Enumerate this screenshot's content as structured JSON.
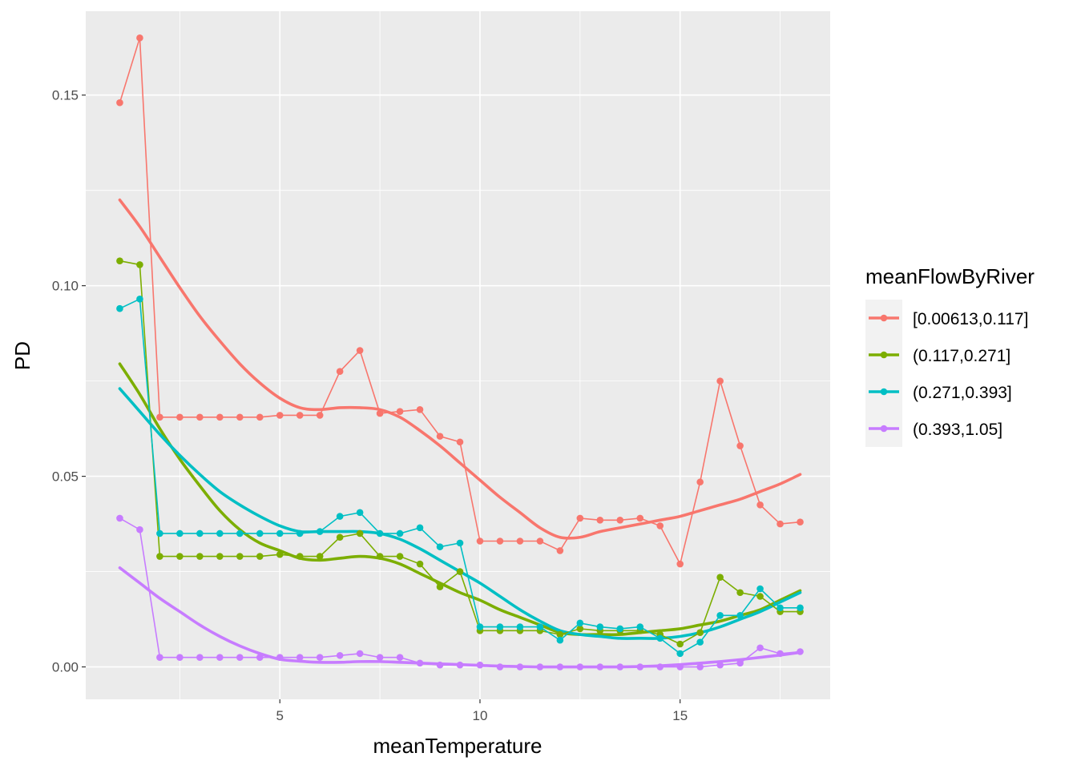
{
  "chart_data": {
    "type": "line",
    "xlabel": "meanTemperature",
    "ylabel": "PD",
    "xlim": [
      0.15,
      18.75
    ],
    "ylim": [
      -0.0085,
      0.172
    ],
    "x_ticks": [
      5,
      10,
      15
    ],
    "x_tick_labels": [
      "5",
      "10",
      "15"
    ],
    "y_ticks": [
      0.0,
      0.05,
      0.1,
      0.15
    ],
    "y_tick_labels": [
      "0.00",
      "0.05",
      "0.10",
      "0.15"
    ],
    "grid": true,
    "legend": {
      "title": "meanFlowByRiver",
      "position": "right"
    },
    "series": [
      {
        "name": "[0.00613,0.117]",
        "color": "#F8766D",
        "x": [
          1,
          1.5,
          2,
          2.5,
          3,
          3.5,
          4,
          4.5,
          5,
          5.5,
          6,
          6.5,
          7,
          7.5,
          8,
          8.5,
          9,
          9.5,
          10,
          10.5,
          11,
          11.5,
          12,
          12.5,
          13,
          13.5,
          14,
          14.5,
          15,
          15.5,
          16,
          16.5,
          17,
          17.5,
          18
        ],
        "y": [
          0.148,
          0.165,
          0.0655,
          0.0655,
          0.0655,
          0.0655,
          0.0655,
          0.0655,
          0.066,
          0.066,
          0.066,
          0.0775,
          0.083,
          0.0665,
          0.067,
          0.0675,
          0.0605,
          0.059,
          0.033,
          0.033,
          0.033,
          0.033,
          0.0305,
          0.039,
          0.0385,
          0.0385,
          0.039,
          0.037,
          0.027,
          0.0485,
          0.075,
          0.058,
          0.0425,
          0.0375,
          0.038
        ],
        "smooth_y": [
          0.1225,
          0.1155,
          0.1075,
          0.0995,
          0.092,
          0.0855,
          0.0795,
          0.0745,
          0.0705,
          0.068,
          0.0675,
          0.068,
          0.068,
          0.0675,
          0.0655,
          0.062,
          0.058,
          0.0535,
          0.049,
          0.0445,
          0.0405,
          0.0365,
          0.034,
          0.034,
          0.0355,
          0.0365,
          0.0375,
          0.0385,
          0.0395,
          0.041,
          0.0425,
          0.044,
          0.046,
          0.048,
          0.0505
        ]
      },
      {
        "name": "(0.117,0.271]",
        "color": "#7CAE00",
        "x": [
          1,
          1.5,
          2,
          2.5,
          3,
          3.5,
          4,
          4.5,
          5,
          5.5,
          6,
          6.5,
          7,
          7.5,
          8,
          8.5,
          9,
          9.5,
          10,
          10.5,
          11,
          11.5,
          12,
          12.5,
          13,
          13.5,
          14,
          14.5,
          15,
          15.5,
          16,
          16.5,
          17,
          17.5,
          18
        ],
        "y": [
          0.1065,
          0.1055,
          0.029,
          0.029,
          0.029,
          0.029,
          0.029,
          0.029,
          0.0295,
          0.029,
          0.029,
          0.034,
          0.035,
          0.029,
          0.029,
          0.027,
          0.021,
          0.025,
          0.0095,
          0.0095,
          0.0095,
          0.0095,
          0.0085,
          0.01,
          0.0095,
          0.0095,
          0.0095,
          0.0085,
          0.006,
          0.009,
          0.0235,
          0.0195,
          0.0185,
          0.0145,
          0.0145
        ],
        "smooth_y": [
          0.0795,
          0.0715,
          0.0625,
          0.0545,
          0.0475,
          0.041,
          0.036,
          0.0325,
          0.0305,
          0.0285,
          0.028,
          0.0285,
          0.029,
          0.0285,
          0.027,
          0.0245,
          0.022,
          0.0195,
          0.0175,
          0.015,
          0.013,
          0.011,
          0.009,
          0.0085,
          0.0085,
          0.0085,
          0.009,
          0.0095,
          0.01,
          0.011,
          0.012,
          0.0135,
          0.015,
          0.0175,
          0.02
        ]
      },
      {
        "name": "(0.271,0.393]",
        "color": "#00BFC4",
        "x": [
          1,
          1.5,
          2,
          2.5,
          3,
          3.5,
          4,
          4.5,
          5,
          5.5,
          6,
          6.5,
          7,
          7.5,
          8,
          8.5,
          9,
          9.5,
          10,
          10.5,
          11,
          11.5,
          12,
          12.5,
          13,
          13.5,
          14,
          14.5,
          15,
          15.5,
          16,
          16.5,
          17,
          17.5,
          18
        ],
        "y": [
          0.094,
          0.0965,
          0.035,
          0.035,
          0.035,
          0.035,
          0.035,
          0.035,
          0.035,
          0.035,
          0.0355,
          0.0395,
          0.0405,
          0.035,
          0.035,
          0.0365,
          0.0315,
          0.0325,
          0.0105,
          0.0105,
          0.0105,
          0.0105,
          0.007,
          0.0115,
          0.0105,
          0.01,
          0.0105,
          0.0075,
          0.0035,
          0.0065,
          0.0135,
          0.0135,
          0.0205,
          0.0155,
          0.0155
        ],
        "smooth_y": [
          0.073,
          0.067,
          0.061,
          0.0555,
          0.0505,
          0.046,
          0.0425,
          0.0395,
          0.037,
          0.0355,
          0.0355,
          0.0355,
          0.0355,
          0.035,
          0.0335,
          0.031,
          0.028,
          0.025,
          0.022,
          0.0185,
          0.015,
          0.012,
          0.0095,
          0.0085,
          0.008,
          0.0075,
          0.0075,
          0.0075,
          0.008,
          0.009,
          0.0105,
          0.0125,
          0.0145,
          0.017,
          0.0195
        ]
      },
      {
        "name": "(0.393,1.05]",
        "color": "#C77CFF",
        "x": [
          1,
          1.5,
          2,
          2.5,
          3,
          3.5,
          4,
          4.5,
          5,
          5.5,
          6,
          6.5,
          7,
          7.5,
          8,
          8.5,
          9,
          9.5,
          10,
          10.5,
          11,
          11.5,
          12,
          12.5,
          13,
          13.5,
          14,
          14.5,
          15,
          15.5,
          16,
          16.5,
          17,
          17.5,
          18
        ],
        "y": [
          0.039,
          0.036,
          0.0025,
          0.0025,
          0.0025,
          0.0025,
          0.0025,
          0.0025,
          0.0025,
          0.0025,
          0.0025,
          0.003,
          0.0035,
          0.0025,
          0.0025,
          0.001,
          0.0005,
          0.0005,
          0.0005,
          0.0,
          0.0,
          0.0,
          0.0,
          0.0,
          0.0,
          0.0,
          0.0,
          0.0,
          0.0,
          0.0,
          0.0005,
          0.001,
          0.005,
          0.0035,
          0.004
        ],
        "smooth_y": [
          0.026,
          0.022,
          0.018,
          0.0145,
          0.011,
          0.008,
          0.0055,
          0.0035,
          0.002,
          0.0015,
          0.0012,
          0.0012,
          0.0014,
          0.0014,
          0.0012,
          0.001,
          0.0008,
          0.0006,
          0.0004,
          0.0002,
          0.0001,
          0.0,
          0.0,
          0.0,
          0.0,
          0.0,
          0.0001,
          0.0003,
          0.0006,
          0.001,
          0.0014,
          0.0019,
          0.0025,
          0.0031,
          0.0038
        ]
      }
    ]
  }
}
